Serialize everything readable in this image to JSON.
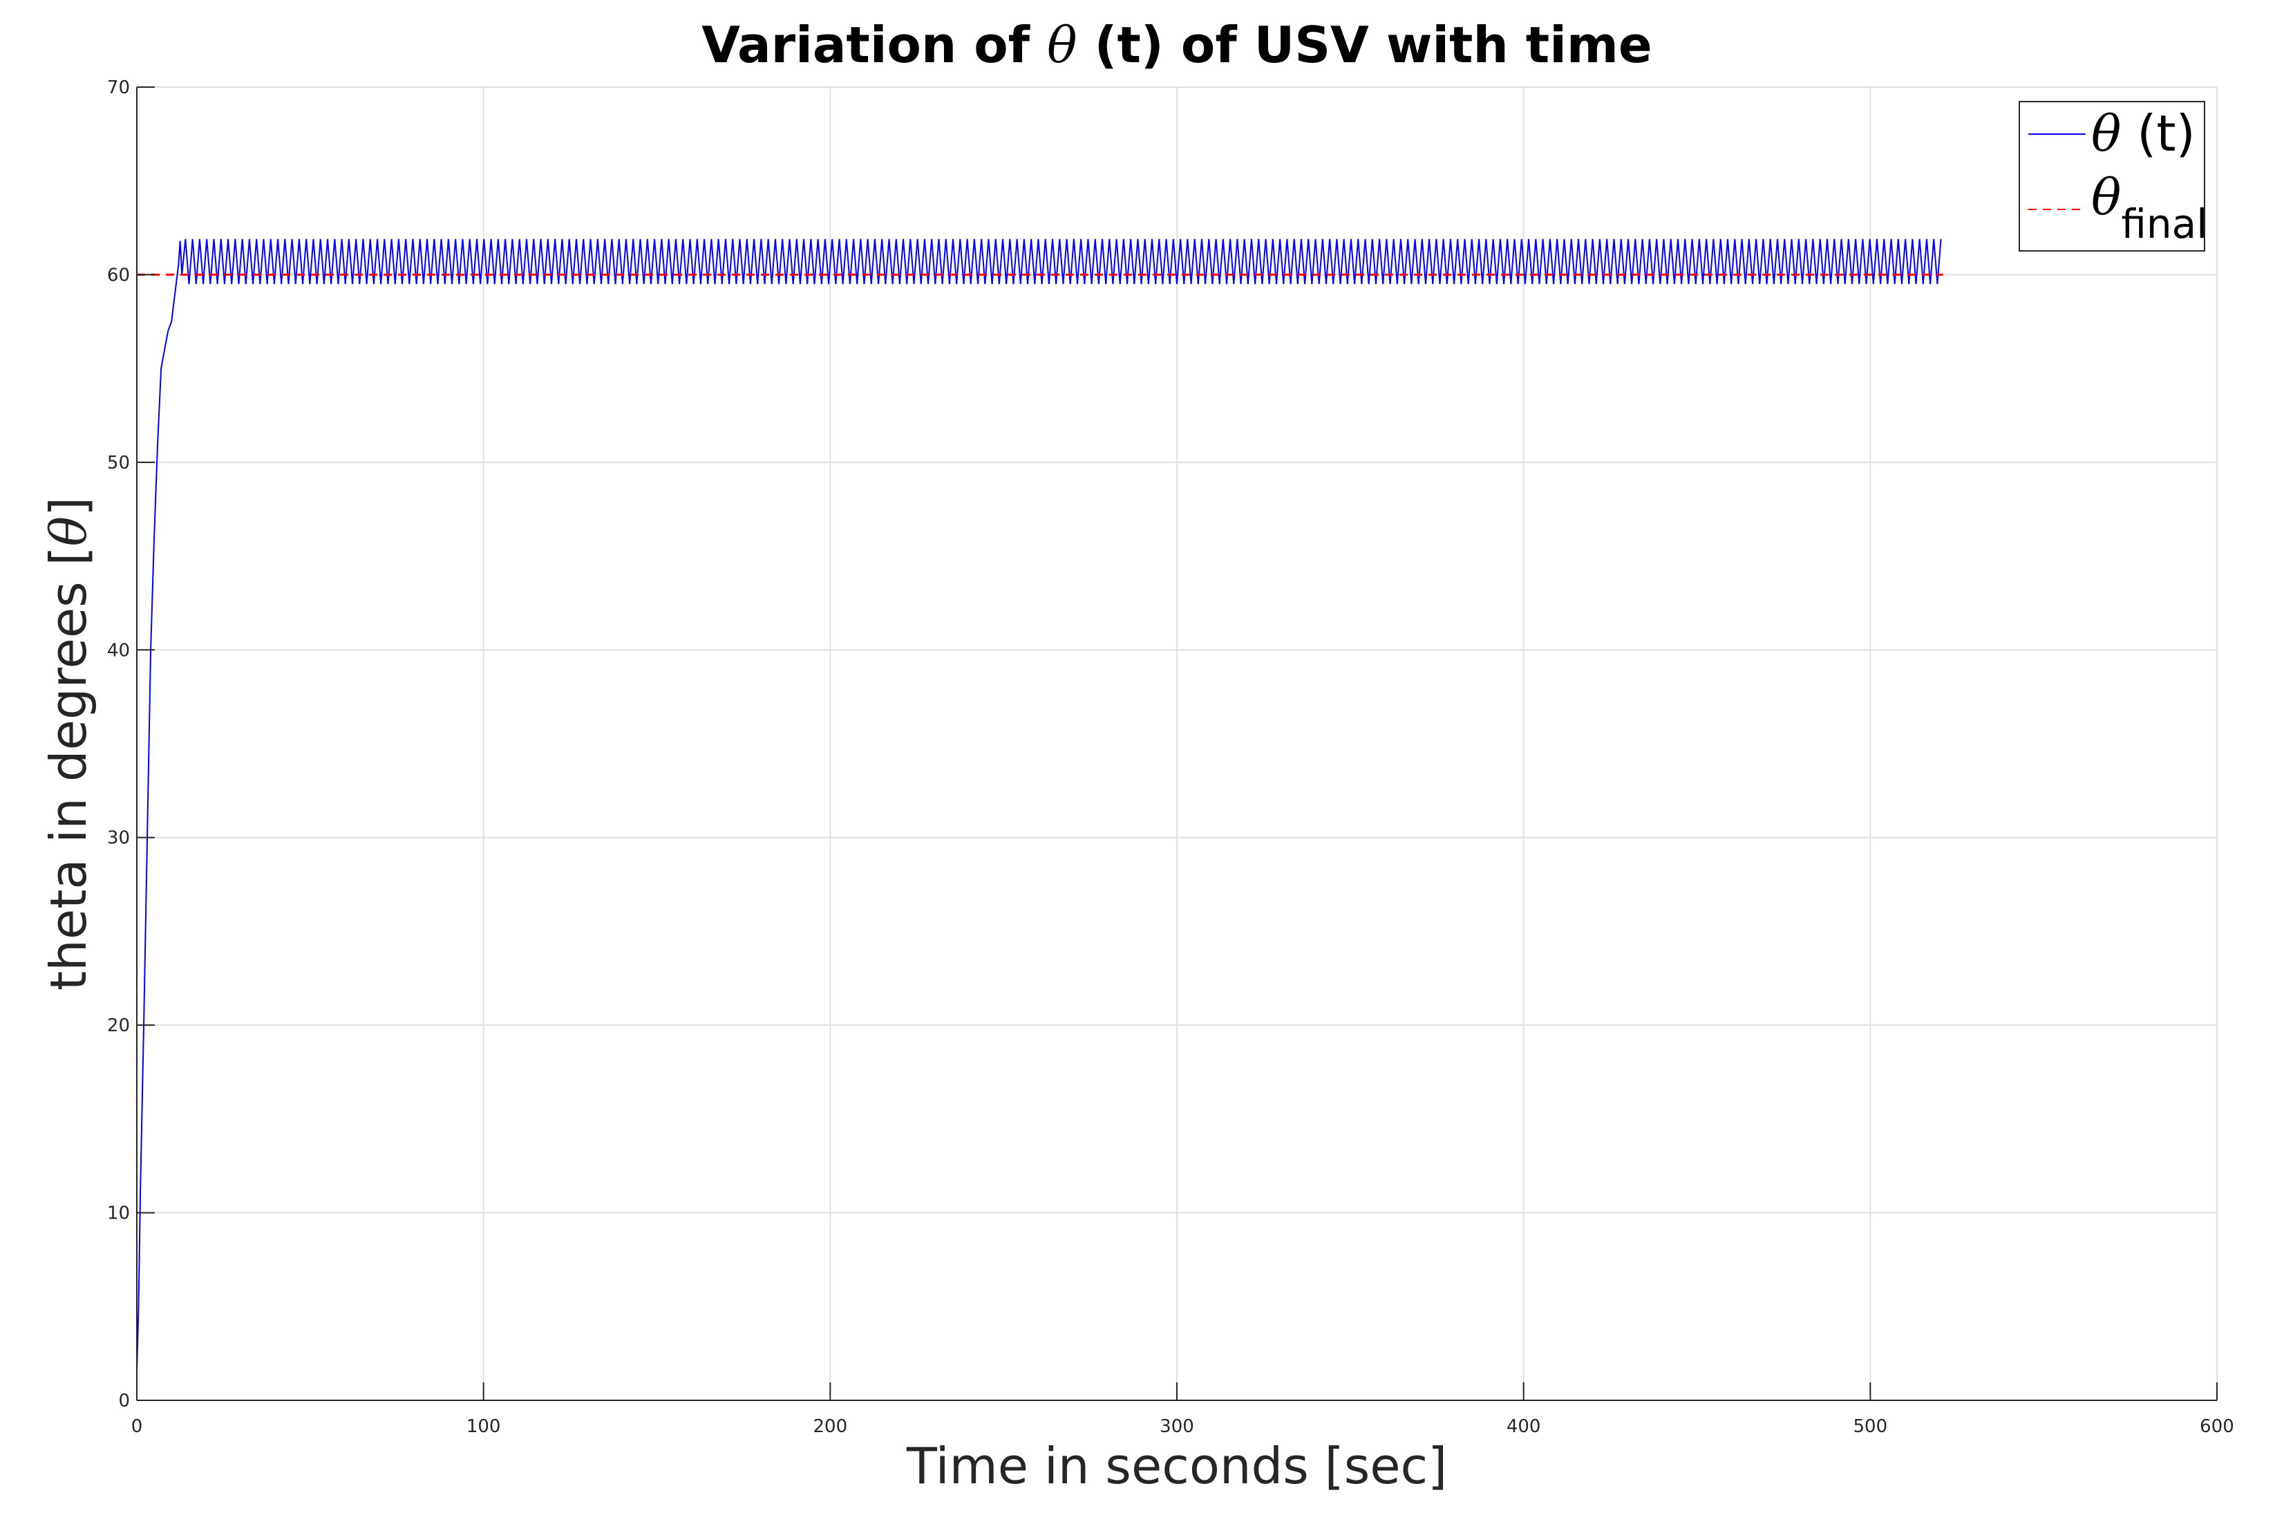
{
  "chart_data": {
    "type": "line",
    "title": {
      "before": "Variation of ",
      "symbol": "θ",
      "after": " (t) of USV with time"
    },
    "xlabel": "Time in seconds [sec]",
    "ylabel": {
      "before": "theta in degrees [",
      "symbol": "θ",
      "after": "]"
    },
    "xlim": [
      0,
      600
    ],
    "ylim": [
      0,
      70
    ],
    "x_ticks": [
      0,
      100,
      200,
      300,
      400,
      500,
      600
    ],
    "y_ticks": [
      0,
      10,
      20,
      30,
      40,
      50,
      60,
      70
    ],
    "grid": true,
    "legend_position": "top-right",
    "series": [
      {
        "name": {
          "symbol": "θ",
          "text": " (t)"
        },
        "style": "solid",
        "color": "#0000ff",
        "rise": {
          "x": [
            0,
            0.5,
            1,
            2,
            3,
            4,
            5,
            6,
            7,
            8,
            9,
            10,
            11,
            12,
            12.5,
            13
          ],
          "y": [
            1.5,
            5,
            11,
            20,
            30,
            40,
            46,
            51,
            55,
            56,
            57,
            57.5,
            59,
            60.5,
            61.8,
            60
          ]
        },
        "oscillation": {
          "x_start": 13,
          "x_end": 521,
          "period": 2.05,
          "min": 59.5,
          "max": 61.9
        }
      },
      {
        "name": {
          "symbol": "θ",
          "subscript": "final"
        },
        "style": "dashed",
        "color": "#ff0000",
        "x": [
          0,
          521
        ],
        "y": [
          60,
          60
        ]
      }
    ]
  }
}
